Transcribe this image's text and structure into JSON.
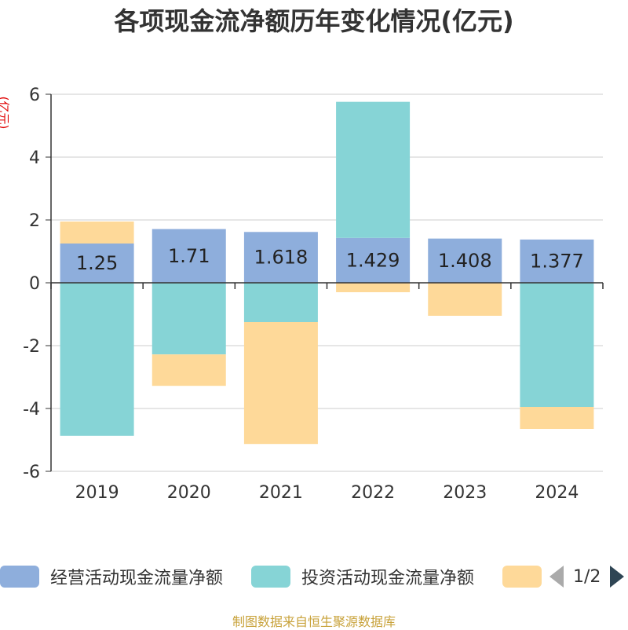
{
  "title": "各项现金流净额历年变化情况(亿元)",
  "footer": "制图数据来自恒生聚源数据库",
  "legend": {
    "items": [
      "经营活动现金流量净额",
      "投资活动现金流量净额"
    ],
    "page": "1/2"
  },
  "colors": {
    "operating": "#8eaedc",
    "investing": "#86d4d6",
    "financing": "#fed999",
    "grid": "#cccccc",
    "axis": "#333333"
  },
  "chart_data": {
    "type": "bar",
    "stacked": true,
    "ylabel": "(亿元)",
    "ylim": [
      -6,
      6
    ],
    "yticks": [
      6,
      4,
      2,
      0,
      -2,
      -4,
      -6
    ],
    "grid": true,
    "legend_position": "bottom",
    "categories": [
      "2019",
      "2020",
      "2021",
      "2022",
      "2023",
      "2024"
    ],
    "series": [
      {
        "name": "经营活动现金流量净额",
        "values": [
          1.25,
          1.71,
          1.618,
          1.429,
          1.408,
          1.377
        ],
        "labels": [
          "1.25",
          "1.71",
          "1.618",
          "1.429",
          "1.408",
          "1.377"
        ]
      },
      {
        "name": "投资活动现金流量净额",
        "values": [
          -4.87,
          -2.28,
          -1.25,
          4.33,
          0,
          -3.95
        ]
      },
      {
        "values": [
          0.7,
          -1.0,
          -3.88,
          -0.3,
          -1.05,
          -0.7
        ]
      }
    ]
  }
}
